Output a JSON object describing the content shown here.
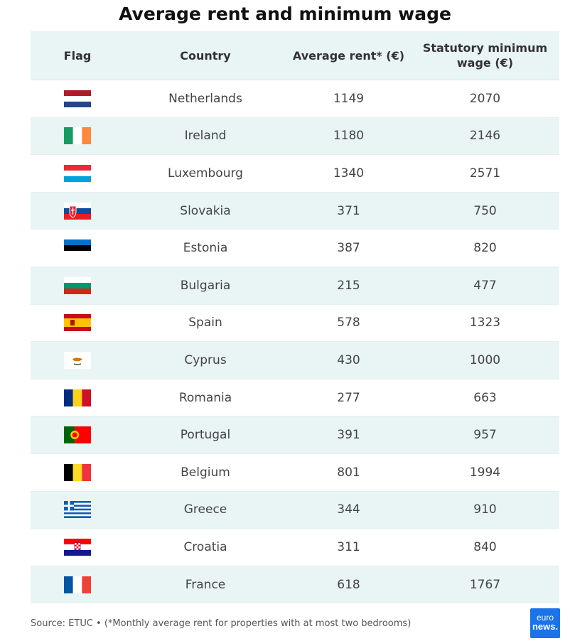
{
  "title": "Average rent and minimum wage",
  "headers": {
    "flag": "Flag",
    "country": "Country",
    "rent": "Average rent* (€)",
    "wage_line1": "Statutory minimum",
    "wage_line2": "wage (€)"
  },
  "footer": "Source: ETUC • (*Monthly average rent for properties with at most two bedrooms)",
  "logo": {
    "line1": "euro",
    "line2": "news."
  },
  "chart_data": {
    "type": "table",
    "title": "Average rent and minimum wage",
    "columns": [
      "Flag",
      "Country",
      "Average rent* (€)",
      "Statutory minimum wage (€)"
    ],
    "rows": [
      {
        "country": "Netherlands",
        "rent": "1149",
        "wage": "2070",
        "flag": "netherlands"
      },
      {
        "country": "Ireland",
        "rent": "1180",
        "wage": "2146",
        "flag": "ireland"
      },
      {
        "country": "Luxembourg",
        "rent": "1340",
        "wage": "2571",
        "flag": "luxembourg"
      },
      {
        "country": "Slovakia",
        "rent": "371",
        "wage": "750",
        "flag": "slovakia"
      },
      {
        "country": "Estonia",
        "rent": "387",
        "wage": "820",
        "flag": "estonia"
      },
      {
        "country": "Bulgaria",
        "rent": "215",
        "wage": "477",
        "flag": "bulgaria"
      },
      {
        "country": "Spain",
        "rent": "578",
        "wage": "1323",
        "flag": "spain"
      },
      {
        "country": "Cyprus",
        "rent": "430",
        "wage": "1000",
        "flag": "cyprus"
      },
      {
        "country": "Romania",
        "rent": "277",
        "wage": "663",
        "flag": "romania"
      },
      {
        "country": "Portugal",
        "rent": "391",
        "wage": "957",
        "flag": "portugal"
      },
      {
        "country": "Belgium",
        "rent": "801",
        "wage": "1994",
        "flag": "belgium"
      },
      {
        "country": "Greece",
        "rent": "344",
        "wage": "910",
        "flag": "greece"
      },
      {
        "country": "Croatia",
        "rent": "311",
        "wage": "840",
        "flag": "croatia"
      },
      {
        "country": "France",
        "rent": "618",
        "wage": "1767",
        "flag": "france"
      }
    ]
  },
  "colors": {
    "header_bg": "#e9f4f5",
    "stripe_bg": "#e9f4f5",
    "logo_bg": "#1a73e8"
  }
}
